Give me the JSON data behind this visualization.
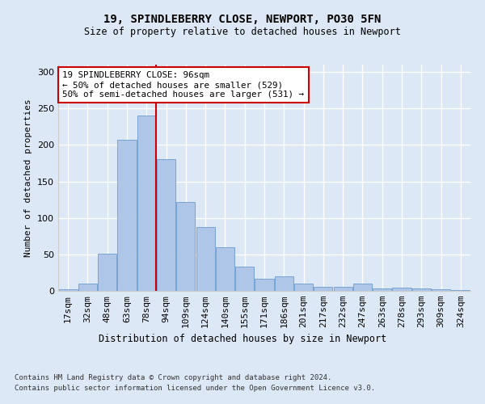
{
  "title1": "19, SPINDLEBERRY CLOSE, NEWPORT, PO30 5FN",
  "title2": "Size of property relative to detached houses in Newport",
  "xlabel": "Distribution of detached houses by size in Newport",
  "ylabel": "Number of detached properties",
  "categories": [
    "17sqm",
    "32sqm",
    "48sqm",
    "63sqm",
    "78sqm",
    "94sqm",
    "109sqm",
    "124sqm",
    "140sqm",
    "155sqm",
    "171sqm",
    "186sqm",
    "201sqm",
    "217sqm",
    "232sqm",
    "247sqm",
    "263sqm",
    "278sqm",
    "293sqm",
    "309sqm",
    "324sqm"
  ],
  "values": [
    2,
    10,
    51,
    207,
    240,
    181,
    122,
    88,
    60,
    33,
    17,
    20,
    10,
    5,
    6,
    10,
    3,
    4,
    3,
    2,
    1
  ],
  "bar_color": "#aec6e8",
  "bar_edge_color": "#5b8fc9",
  "vline_x": 4.5,
  "vline_color": "#cc0000",
  "annotation_text": "19 SPINDLEBERRY CLOSE: 96sqm\n← 50% of detached houses are smaller (529)\n50% of semi-detached houses are larger (531) →",
  "annotation_box_color": "#ffffff",
  "annotation_box_edge": "#cc0000",
  "footer1": "Contains HM Land Registry data © Crown copyright and database right 2024.",
  "footer2": "Contains public sector information licensed under the Open Government Licence v3.0.",
  "ylim": [
    0,
    310
  ],
  "background_color": "#dce8f5",
  "grid_color": "#ffffff"
}
